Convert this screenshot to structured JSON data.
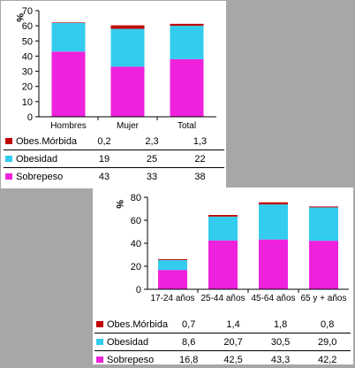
{
  "colors": {
    "obes_morbida": "#c00000",
    "obesidad": "#33ccee",
    "sobrepeso": "#ee22dd"
  },
  "chart_data": [
    {
      "type": "bar",
      "stacked": true,
      "ylabel": "%",
      "ylim": [
        0,
        70
      ],
      "yticks": [
        "0",
        "10",
        "20",
        "30",
        "40",
        "50",
        "60",
        "70"
      ],
      "categories": [
        "Hombres",
        "Mujer",
        "Total"
      ],
      "series": [
        {
          "name": "Sobrepeso",
          "values": [
            43,
            33,
            38
          ]
        },
        {
          "name": "Obesidad",
          "values": [
            19,
            25,
            22
          ]
        },
        {
          "name": "Obes.Mórbida",
          "values": [
            0.2,
            2.3,
            1.3
          ]
        }
      ],
      "table": [
        {
          "label": "Obes.Mórbida",
          "values": [
            "0,2",
            "2,3",
            "1,3"
          ]
        },
        {
          "label": "Obesidad",
          "values": [
            "19",
            "25",
            "22"
          ]
        },
        {
          "label": "Sobrepeso",
          "values": [
            "43",
            "33",
            "38"
          ]
        }
      ]
    },
    {
      "type": "bar",
      "stacked": true,
      "ylabel": "%",
      "ylim": [
        0,
        80
      ],
      "yticks": [
        "0",
        "20",
        "40",
        "60",
        "80"
      ],
      "categories": [
        "17-24 años",
        "25-44 años",
        "45-64 años",
        "65 y + años"
      ],
      "series": [
        {
          "name": "Sobrepeso",
          "values": [
            16.8,
            42.5,
            43.3,
            42.2
          ]
        },
        {
          "name": "Obesidad",
          "values": [
            8.6,
            20.7,
            30.5,
            29.0
          ]
        },
        {
          "name": "Obes.Mórbida",
          "values": [
            0.7,
            1.4,
            1.8,
            0.8
          ]
        }
      ],
      "table": [
        {
          "label": "Obes.Mórbida",
          "values": [
            "0,7",
            "1,4",
            "1,8",
            "0,8"
          ]
        },
        {
          "label": "Obesidad",
          "values": [
            "8,6",
            "20,7",
            "30,5",
            "29,0"
          ]
        },
        {
          "label": "Sobrepeso",
          "values": [
            "16,8",
            "42,5",
            "43,3",
            "42,2"
          ]
        }
      ]
    }
  ]
}
